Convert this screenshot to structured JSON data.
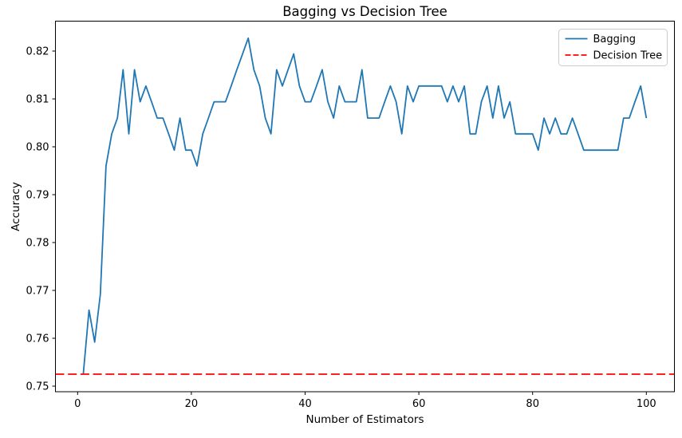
{
  "figure": {
    "title": "Bagging vs Decision Tree",
    "xlabel": "Number of Estimators",
    "ylabel": "Accuracy"
  },
  "legend": {
    "position": "upper right",
    "items": [
      {
        "label": "Bagging",
        "color": "#1f77b4",
        "style": "solid"
      },
      {
        "label": "Decision Tree",
        "color": "#ff0000",
        "style": "dashed"
      }
    ]
  },
  "chart_data": {
    "type": "line",
    "title": "Bagging vs Decision Tree",
    "xlabel": "Number of Estimators",
    "ylabel": "Accuracy",
    "grid": false,
    "legend_position": "upper right",
    "xlim": [
      -3.95,
      104.95
    ],
    "ylim": [
      0.749,
      0.8263
    ],
    "xticks": [
      0,
      20,
      40,
      60,
      80,
      100
    ],
    "yticks": [
      0.75,
      0.76,
      0.77,
      0.78,
      0.79,
      0.8,
      0.81,
      0.82
    ],
    "x": [
      1,
      2,
      3,
      4,
      5,
      6,
      7,
      8,
      9,
      10,
      11,
      12,
      13,
      14,
      15,
      16,
      17,
      18,
      19,
      20,
      21,
      22,
      23,
      24,
      25,
      26,
      27,
      28,
      29,
      30,
      31,
      32,
      33,
      34,
      35,
      36,
      37,
      38,
      39,
      40,
      41,
      42,
      43,
      44,
      45,
      46,
      47,
      48,
      49,
      50,
      51,
      52,
      53,
      54,
      55,
      56,
      57,
      58,
      59,
      60,
      61,
      62,
      63,
      64,
      65,
      66,
      67,
      68,
      69,
      70,
      71,
      72,
      73,
      74,
      75,
      76,
      77,
      78,
      79,
      80,
      81,
      82,
      83,
      84,
      85,
      86,
      87,
      88,
      89,
      90,
      91,
      92,
      93,
      94,
      95,
      96,
      97,
      98,
      99,
      100
    ],
    "series": [
      {
        "name": "Bagging",
        "color": "#1f77b4",
        "style": "solid",
        "values": [
          0.7525,
          0.7659,
          0.7592,
          0.7692,
          0.796,
          0.8027,
          0.806,
          0.8161,
          0.8027,
          0.8161,
          0.8094,
          0.8127,
          0.8094,
          0.806,
          0.806,
          0.8027,
          0.7993,
          0.806,
          0.7993,
          0.7993,
          0.796,
          0.8027,
          0.806,
          0.8094,
          0.8094,
          0.8094,
          0.8127,
          0.8161,
          0.8194,
          0.8227,
          0.8161,
          0.8127,
          0.806,
          0.8027,
          0.8161,
          0.8127,
          0.8161,
          0.8194,
          0.8127,
          0.8094,
          0.8094,
          0.8127,
          0.8161,
          0.8094,
          0.806,
          0.8127,
          0.8094,
          0.8094,
          0.8094,
          0.8161,
          0.806,
          0.806,
          0.806,
          0.8094,
          0.8127,
          0.8094,
          0.8027,
          0.8127,
          0.8094,
          0.8127,
          0.8127,
          0.8127,
          0.8127,
          0.8127,
          0.8094,
          0.8127,
          0.8094,
          0.8127,
          0.8027,
          0.8027,
          0.8094,
          0.8127,
          0.806,
          0.8127,
          0.806,
          0.8094,
          0.8027,
          0.8027,
          0.8027,
          0.8027,
          0.7993,
          0.806,
          0.8027,
          0.806,
          0.8027,
          0.8027,
          0.806,
          0.8027,
          0.7993,
          0.7993,
          0.7993,
          0.7993,
          0.7993,
          0.7993,
          0.7993,
          0.806,
          0.806,
          0.8094,
          0.8127,
          0.806
        ]
      },
      {
        "name": "Decision Tree",
        "color": "#ff0000",
        "style": "dashed",
        "constant": 0.7525
      }
    ]
  }
}
